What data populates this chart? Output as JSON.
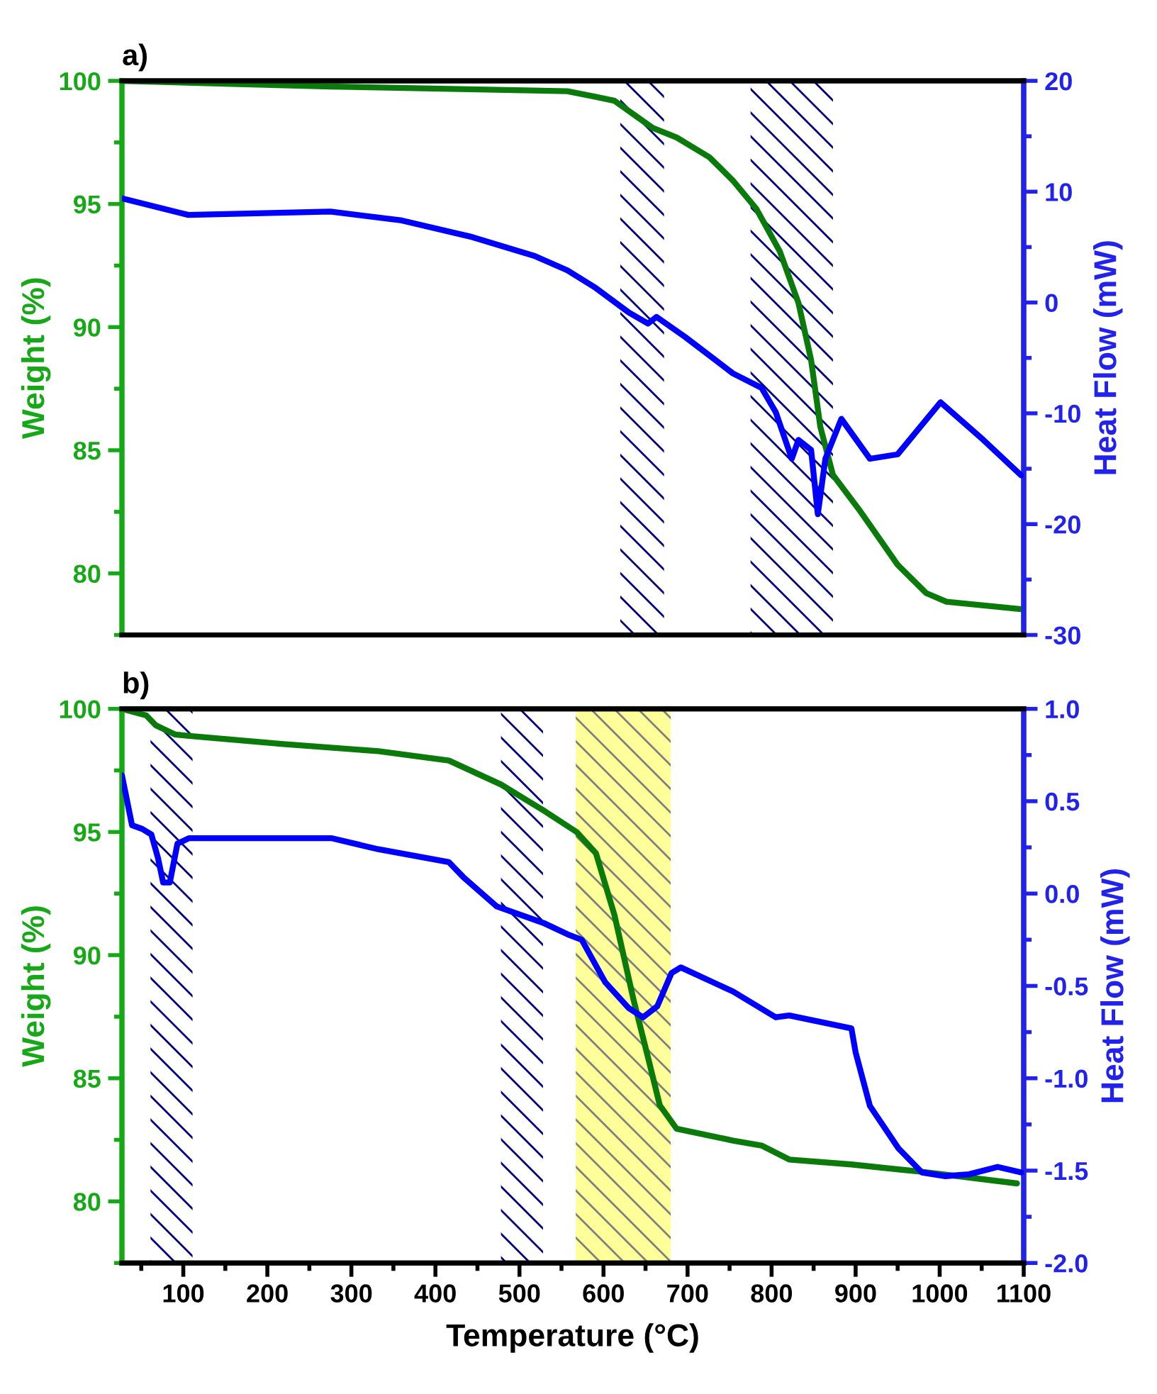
{
  "chart_data": [
    {
      "type": "line",
      "title": "a)",
      "ylabel": "Weight (%)",
      "y2label": "Heat Flow (mW)",
      "xlim": [
        27,
        1100
      ],
      "ylim": [
        77.5,
        100
      ],
      "yticks": [
        80,
        85,
        90,
        95,
        100
      ],
      "y2lim": [
        -30,
        20
      ],
      "y2ticks": [
        -30,
        -20,
        -10,
        0,
        10,
        20
      ],
      "tick_labels": "y",
      "grid": false,
      "bands": [
        {
          "axis": "x",
          "from": 620,
          "to": 672,
          "color": "#000080"
        },
        {
          "axis": "x",
          "from": 775,
          "to": 873,
          "color": "#000080"
        }
      ],
      "series": [
        {
          "color": "#0a7a0a",
          "x": [
            27,
            275,
            557,
            591,
            613,
            658,
            687,
            726,
            754,
            782,
            810,
            832,
            847,
            858,
            873,
            906,
            950,
            984,
            1008,
            1097
          ],
          "values": [
            100,
            99.77,
            99.58,
            99.35,
            99.19,
            98.1,
            97.7,
            96.9,
            95.95,
            94.8,
            93.06,
            90.98,
            88.67,
            85.95,
            84.0,
            82.5,
            80.35,
            79.2,
            78.85,
            78.55
          ]
        },
        {
          "axis": "y2",
          "color": "#0000ff",
          "x": [
            27,
            106,
            275,
            360,
            444,
            518,
            557,
            591,
            630,
            653,
            663,
            697,
            754,
            788,
            805,
            824,
            832,
            847,
            855,
            864,
            883,
            917,
            950,
            1001,
            1052,
            1097
          ],
          "values": [
            9.4,
            7.9,
            8.2,
            7.4,
            5.9,
            4.2,
            2.9,
            1.3,
            -0.9,
            -1.9,
            -1.3,
            -3.1,
            -6.4,
            -7.7,
            -9.9,
            -14.1,
            -12.4,
            -13.3,
            -19.1,
            -14.1,
            -10.5,
            -14.1,
            -13.7,
            -9.0,
            -12.4,
            -15.6
          ]
        }
      ]
    },
    {
      "type": "line",
      "title": "b)",
      "xlabel": "Temperature (°C)",
      "ylabel": "Weight (%)",
      "y2label": "Heat Flow (mW)",
      "xlim": [
        27,
        1100
      ],
      "xticks": [
        100,
        200,
        300,
        400,
        500,
        600,
        700,
        800,
        900,
        1000,
        1100
      ],
      "ylim": [
        77.5,
        100
      ],
      "yticks": [
        80,
        85,
        90,
        95,
        100
      ],
      "y2lim": [
        -2.0,
        1.0
      ],
      "y2ticks": [
        {
          "value": -2.0,
          "label": "-2.0"
        },
        {
          "value": -1.5,
          "label": "-1.5"
        },
        {
          "value": -1.0,
          "label": "-1.0"
        },
        {
          "value": -0.5,
          "label": "-0.5"
        },
        {
          "value": 0.0,
          "label": "0.0"
        },
        {
          "value": 0.5,
          "label": "0.5"
        },
        {
          "value": 1.0,
          "label": "1.0"
        }
      ],
      "grid": false,
      "bands": [
        {
          "axis": "x",
          "from": 61,
          "to": 111,
          "color": "#000080"
        },
        {
          "axis": "x",
          "from": 478,
          "to": 528,
          "color": "#000080"
        },
        {
          "axis": "x",
          "from": 567,
          "to": 680,
          "color": "#ffff99"
        }
      ],
      "series": [
        {
          "color": "#0a7a0a",
          "x": [
            27,
            56,
            67,
            90,
            107,
            219,
            332,
            416,
            478,
            529,
            568,
            591,
            613,
            636,
            653,
            667,
            687,
            754,
            788,
            821,
            895,
            979,
            1092
          ],
          "values": [
            100,
            99.73,
            99.34,
            98.96,
            98.9,
            98.57,
            98.28,
            97.9,
            96.93,
            95.87,
            95.0,
            94.14,
            91.63,
            88.15,
            85.84,
            83.9,
            82.95,
            82.47,
            82.27,
            81.7,
            81.5,
            81.2,
            80.73
          ]
        },
        {
          "axis": "y2",
          "color": "#0000ff",
          "x": [
            27,
            39,
            51,
            62,
            70,
            76,
            84,
            93,
            107,
            219,
            276,
            332,
            416,
            433,
            473,
            529,
            557,
            574,
            602,
            630,
            647,
            664,
            681,
            692,
            754,
            805,
            821,
            895,
            900,
            917,
            951,
            979,
            1007,
            1035,
            1069,
            1097
          ],
          "values": [
            0.64,
            0.37,
            0.35,
            0.32,
            0.19,
            0.06,
            0.06,
            0.27,
            0.3,
            0.3,
            0.3,
            0.24,
            0.17,
            0.09,
            -0.07,
            -0.16,
            -0.22,
            -0.25,
            -0.48,
            -0.62,
            -0.67,
            -0.61,
            -0.43,
            -0.4,
            -0.53,
            -0.67,
            -0.66,
            -0.73,
            -0.86,
            -1.15,
            -1.38,
            -1.51,
            -1.53,
            -1.52,
            -1.48,
            -1.51
          ]
        }
      ]
    }
  ]
}
